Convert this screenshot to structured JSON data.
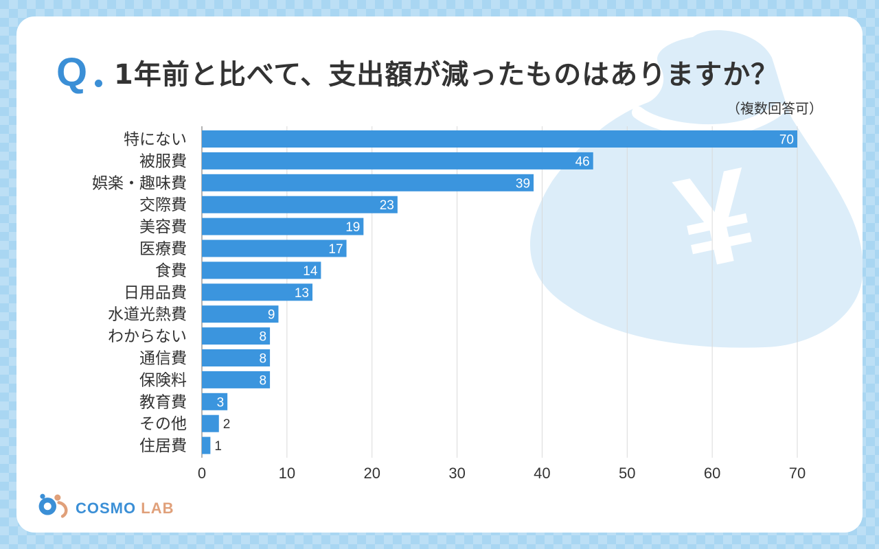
{
  "header": {
    "q_mark": "Q",
    "title": "1年前と比べて、支出額が減ったものはありますか？",
    "subtitle": "（複数回答可）"
  },
  "brand": {
    "name_a": "COSMO",
    "name_b": "LAB"
  },
  "decoration": {
    "yen_symbol": "¥"
  },
  "colors": {
    "bar": "#3b95de",
    "accent": "#3b8fd6",
    "deco": "#dcedf9"
  },
  "chart_data": {
    "type": "bar",
    "orientation": "horizontal",
    "categories": [
      "特にない",
      "被服費",
      "娯楽・趣味費",
      "交際費",
      "美容費",
      "医療費",
      "食費",
      "日用品費",
      "水道光熱費",
      "わからない",
      "通信費",
      "保険料",
      "教育費",
      "その他",
      "住居費"
    ],
    "values": [
      70,
      46,
      39,
      23,
      19,
      17,
      14,
      13,
      9,
      8,
      8,
      8,
      3,
      2,
      1
    ],
    "xlim": [
      0,
      70
    ],
    "xticks": [
      0,
      10,
      20,
      30,
      40,
      50,
      60,
      70
    ],
    "grid": true,
    "data_labels": true
  }
}
